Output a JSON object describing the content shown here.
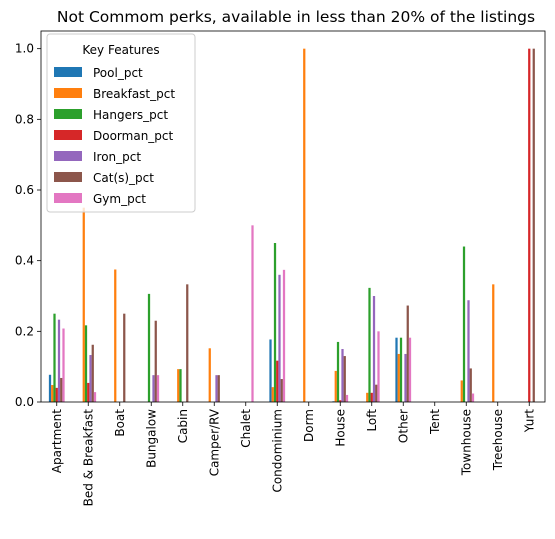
{
  "chart_data": {
    "type": "bar",
    "title": "Not Commom perks, available in less than 20% of the listings",
    "xlabel": "",
    "ylabel": "",
    "ylim": [
      0,
      1.05
    ],
    "yticks": [
      "0.0",
      "0.2",
      "0.4",
      "0.6",
      "0.8",
      "1.0"
    ],
    "grid": false,
    "legend": {
      "title": "Key Features",
      "placement": "upper-left"
    },
    "categories": [
      "Apartment",
      "Bed & Breakfast",
      "Boat",
      "Bungalow",
      "Cabin",
      "Camper/RV",
      "Chalet",
      "Condominium",
      "Dorm",
      "House",
      "Loft",
      "Other",
      "Tent",
      "Townhouse",
      "Treehouse",
      "Yurt"
    ],
    "series": [
      {
        "name": "Pool_pct",
        "color": "#1f77b4",
        "values": [
          0.077,
          0.0,
          0.0,
          0.0,
          0.0,
          0.0,
          0.0,
          0.177,
          0.0,
          0.002,
          0.0,
          0.182,
          0.0,
          0.0,
          0.0,
          0.0
        ]
      },
      {
        "name": "Breakfast_pct",
        "color": "#ff7f0e",
        "values": [
          0.048,
          0.55,
          0.375,
          0.0,
          0.093,
          0.152,
          0.0,
          0.042,
          1.0,
          0.088,
          0.026,
          0.136,
          0.0,
          0.061,
          0.333,
          0.0
        ]
      },
      {
        "name": "Hangers_pct",
        "color": "#2ca02c",
        "values": [
          0.25,
          0.217,
          0.0,
          0.306,
          0.093,
          0.0,
          0.0,
          0.45,
          0.0,
          0.17,
          0.323,
          0.182,
          0.0,
          0.44,
          0.0,
          0.0
        ]
      },
      {
        "name": "Doorman_pct",
        "color": "#d62728",
        "values": [
          0.04,
          0.054,
          0.0,
          0.0,
          0.0,
          0.0,
          0.0,
          0.117,
          0.0,
          0.005,
          0.026,
          0.0,
          0.0,
          0.0,
          0.0,
          1.0
        ]
      },
      {
        "name": "Iron_pct",
        "color": "#9467bd",
        "values": [
          0.233,
          0.133,
          0.0,
          0.076,
          0.0,
          0.076,
          0.0,
          0.36,
          0.0,
          0.15,
          0.3,
          0.136,
          0.0,
          0.288,
          0.0,
          0.0
        ]
      },
      {
        "name": "Cat(s)_pct",
        "color": "#8c564b",
        "values": [
          0.068,
          0.162,
          0.25,
          0.23,
          0.333,
          0.076,
          0.0,
          0.065,
          0.0,
          0.13,
          0.049,
          0.273,
          0.0,
          0.095,
          0.0,
          1.0
        ]
      },
      {
        "name": "Gym_pct",
        "color": "#e377c2",
        "values": [
          0.208,
          0.028,
          0.0,
          0.076,
          0.0,
          0.0,
          0.5,
          0.374,
          0.0,
          0.02,
          0.2,
          0.182,
          0.0,
          0.024,
          0.0,
          0.0
        ]
      }
    ]
  }
}
